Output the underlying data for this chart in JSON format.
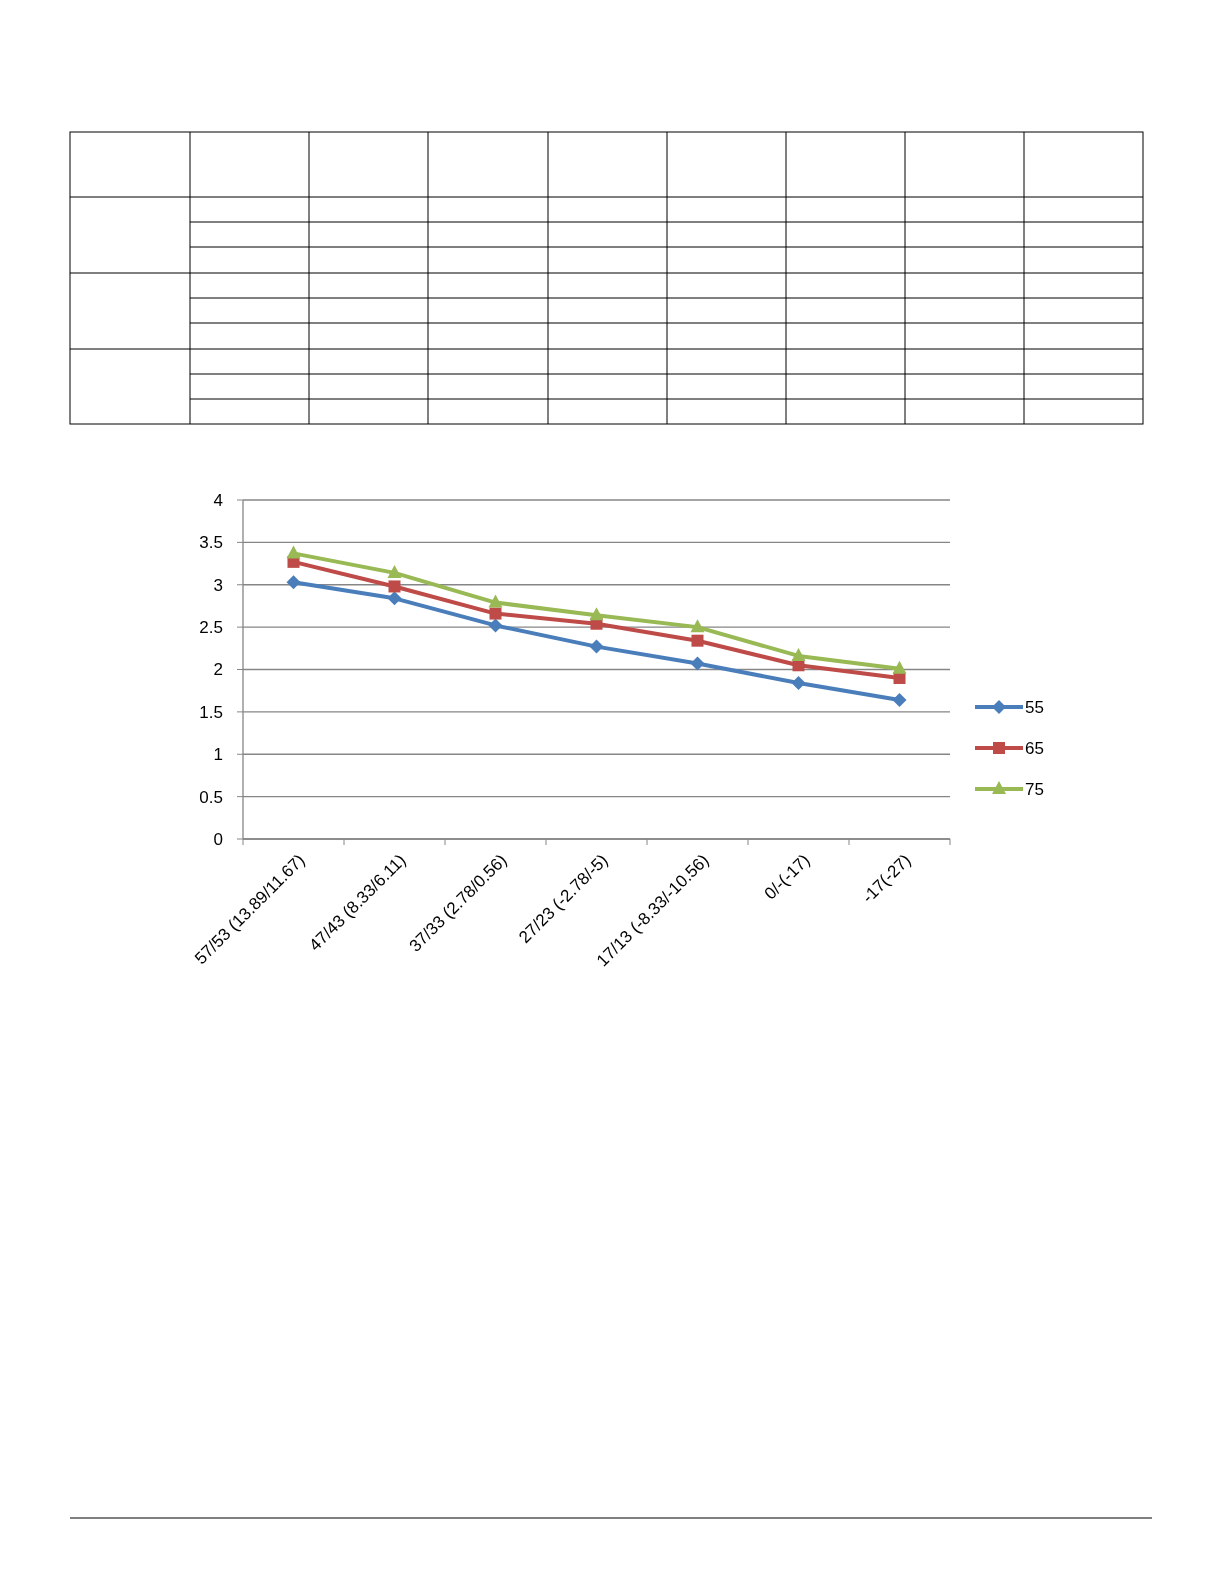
{
  "chart_data": {
    "type": "line",
    "categories": [
      "57/53 (13.89/11.67)",
      "47/43 (8.33/6.11)",
      "37/33 (2.78/0.56)",
      "27/23 (-2.78/-5)",
      "17/13 (-8.33/-10.56)",
      "0/-(-17)",
      "-17(-27)"
    ],
    "series": [
      {
        "name": "55",
        "color": "#4a7ebb",
        "marker": "diamond",
        "values": [
          3.03,
          2.84,
          2.52,
          2.27,
          2.07,
          1.84,
          1.64
        ]
      },
      {
        "name": "65",
        "color": "#be4b48",
        "marker": "square",
        "values": [
          3.27,
          2.98,
          2.66,
          2.54,
          2.34,
          2.05,
          1.9
        ]
      },
      {
        "name": "75",
        "color": "#98b954",
        "marker": "triangle",
        "values": [
          3.37,
          3.14,
          2.79,
          2.64,
          2.5,
          2.16,
          2.01
        ]
      }
    ],
    "ylim": [
      0,
      4
    ],
    "yticks": [
      0,
      0.5,
      1,
      1.5,
      2,
      2.5,
      3,
      3.5,
      4
    ],
    "grid": "y",
    "legend": "right"
  }
}
